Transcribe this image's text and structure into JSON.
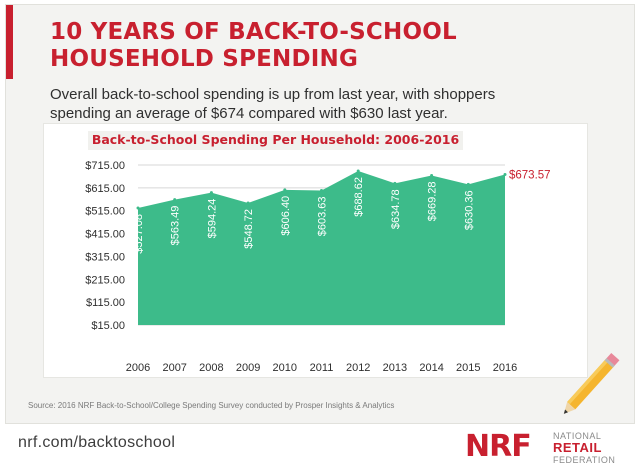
{
  "header": {
    "title_line1": "10 YEARS OF BACK-TO-SCHOOL",
    "title_line2": "HOUSEHOLD SPENDING",
    "subtitle": "Overall back-to-school spending is up from last year, with shoppers spending an average of $674 compared with $630 last year."
  },
  "chart_data": {
    "type": "area",
    "title": "Back-to-School Spending Per Household: 2006-2016",
    "xlabel": "",
    "ylabel": "",
    "x": [
      "2006",
      "2007",
      "2008",
      "2009",
      "2010",
      "2011",
      "2012",
      "2013",
      "2014",
      "2015",
      "2016"
    ],
    "values": [
      527.08,
      563.49,
      594.24,
      548.72,
      606.4,
      603.63,
      688.62,
      634.78,
      669.28,
      630.36,
      673.57
    ],
    "value_labels": [
      "$527.08",
      "$563.49",
      "$594.24",
      "$548.72",
      "$606.40",
      "$603.63",
      "$688.62",
      "$634.78",
      "$669.28",
      "$630.36",
      "$673.57"
    ],
    "y_ticks": [
      715,
      615,
      515,
      415,
      315,
      215,
      115,
      15
    ],
    "y_tick_labels": [
      "$715.00",
      "$615.00",
      "$515.00",
      "$415.00",
      "$315.00",
      "$215.00",
      "$115.00",
      "$15.00"
    ],
    "ylim": [
      15,
      715
    ],
    "grid": true,
    "legend": "none",
    "colors": {
      "fill": "#3dbb8a",
      "highlight_label": "#c8202f",
      "label": "#ffffff"
    }
  },
  "source": "Source: 2016 NRF Back-to-School/College Spending Survey conducted by Prosper Insights & Analytics",
  "footer": {
    "url": "nrf.com/backtoschool",
    "logo_mark": "NRF",
    "logo_line1": "NATIONAL",
    "logo_line2": "RETAIL",
    "logo_line3": "FEDERATION"
  }
}
